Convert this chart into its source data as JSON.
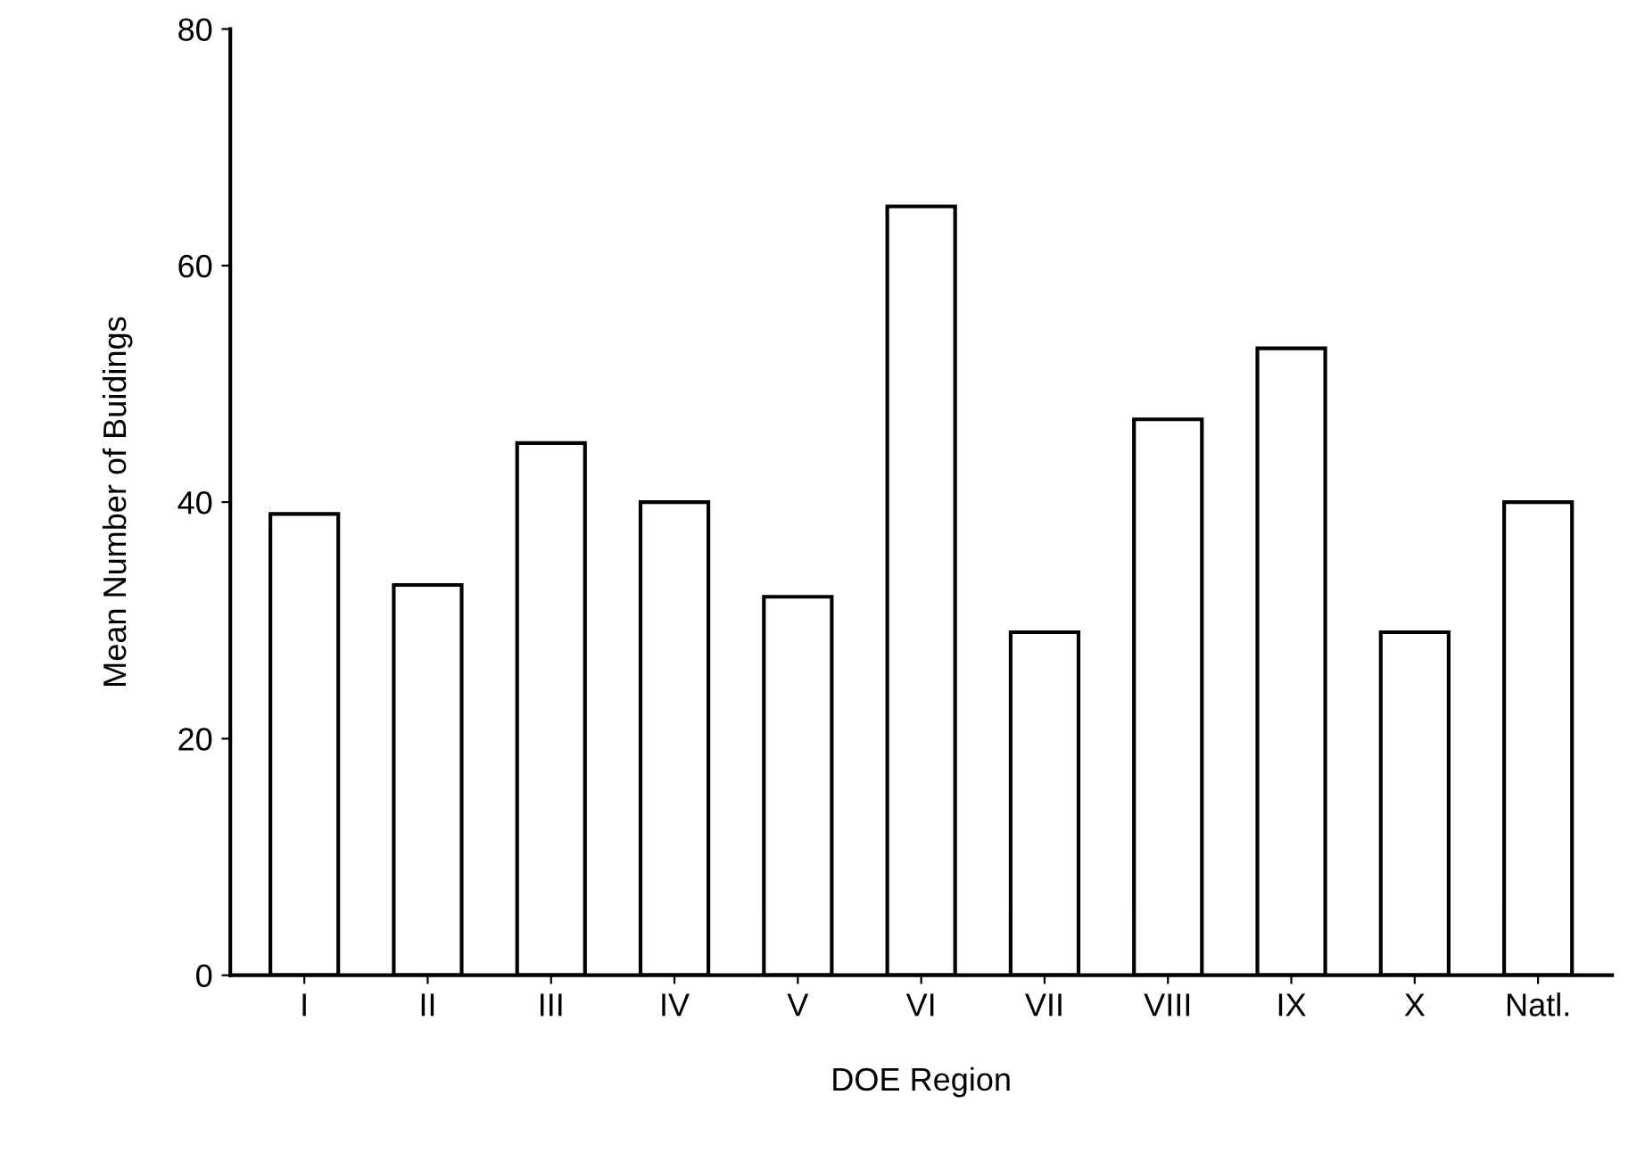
{
  "chart_data": {
    "type": "bar",
    "xlabel": "DOE Region",
    "ylabel": "Mean Number of Buidings",
    "categories": [
      "I",
      "II",
      "III",
      "IV",
      "V",
      "VI",
      "VII",
      "VIII",
      "IX",
      "X",
      "Natl."
    ],
    "values": [
      39,
      33,
      45,
      40,
      32,
      65,
      29,
      47,
      53,
      29,
      40
    ],
    "color": "#ffffff",
    "ylim": [
      0,
      80
    ],
    "yticks": [
      0,
      20,
      40,
      60,
      80
    ],
    "grid": false,
    "legend": false
  }
}
